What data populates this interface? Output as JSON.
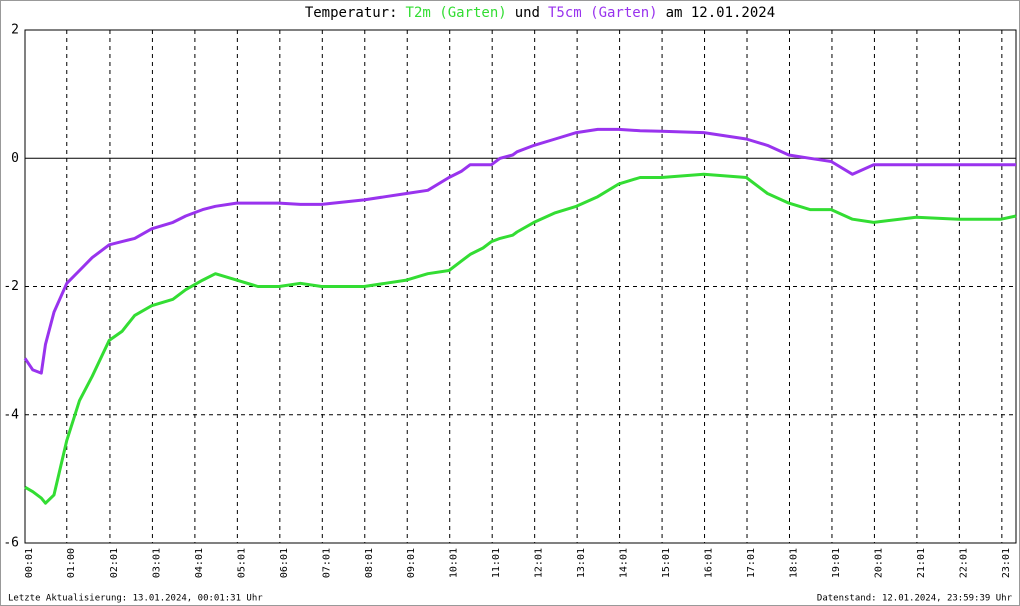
{
  "chart_data": {
    "type": "line",
    "title": [
      {
        "text": "Temperatur:",
        "color": "#000000"
      },
      {
        "text": "T2m (Garten)",
        "color": "#33dd33"
      },
      {
        "text": "und",
        "color": "#000000"
      },
      {
        "text": "T5cm (Garten)",
        "color": "#9933ee"
      },
      {
        "text": "am 12.01.2024",
        "color": "#000000"
      }
    ],
    "footer_left": "Letzte Aktualisierung: 13.01.2024, 00:01:31 Uhr",
    "footer_right": "Datenstand: 12.01.2024, 23:59:39 Uhr",
    "x": [
      0.0167,
      0.2,
      0.4,
      0.5,
      0.7,
      1.0,
      1.3,
      1.6,
      2.0,
      2.3,
      2.6,
      3.0,
      3.5,
      3.8,
      4.2,
      4.5,
      5.0,
      5.5,
      6.0,
      6.5,
      7.0,
      8.0,
      8.5,
      9.0,
      9.5,
      10.0,
      10.3,
      10.5,
      10.8,
      11.0,
      11.2,
      11.5,
      11.6,
      12.0,
      12.5,
      13.0,
      13.5,
      14.0,
      14.5,
      15.0,
      16.0,
      17.0,
      17.5,
      18.0,
      18.5,
      19.0,
      19.5,
      20.0,
      21.0,
      22.0,
      23.0,
      23.35
    ],
    "series": [
      {
        "name": "T2m (Garten)",
        "color": "#33dd33",
        "values": [
          -5.13,
          -5.2,
          -5.3,
          -5.38,
          -5.25,
          -4.4,
          -3.78,
          -3.4,
          -2.84,
          -2.7,
          -2.45,
          -2.3,
          -2.2,
          -2.05,
          -1.9,
          -1.8,
          -1.9,
          -2.0,
          -2.0,
          -1.95,
          -2.0,
          -2.0,
          -1.95,
          -1.9,
          -1.8,
          -1.75,
          -1.6,
          -1.5,
          -1.4,
          -1.3,
          -1.25,
          -1.2,
          -1.15,
          -1.0,
          -0.85,
          -0.75,
          -0.6,
          -0.4,
          -0.3,
          -0.3,
          -0.25,
          -0.3,
          -0.55,
          -0.7,
          -0.8,
          -0.8,
          -0.95,
          -1.0,
          -0.92,
          -0.95,
          -0.95,
          -0.9
        ]
      },
      {
        "name": "T5cm (Garten)",
        "color": "#9933ee",
        "values": [
          -3.12,
          -3.3,
          -3.35,
          -2.9,
          -2.4,
          -1.95,
          -1.75,
          -1.55,
          -1.35,
          -1.3,
          -1.25,
          -1.1,
          -1.0,
          -0.9,
          -0.8,
          -0.75,
          -0.7,
          -0.7,
          -0.7,
          -0.72,
          -0.72,
          -0.65,
          -0.6,
          -0.55,
          -0.5,
          -0.3,
          -0.2,
          -0.1,
          -0.1,
          -0.1,
          0.0,
          0.05,
          0.1,
          0.2,
          0.3,
          0.4,
          0.45,
          0.45,
          0.43,
          0.42,
          0.4,
          0.3,
          0.2,
          0.05,
          0.0,
          -0.05,
          -0.25,
          -0.1,
          -0.1,
          -0.1,
          -0.1,
          -0.1
        ]
      }
    ],
    "xlim": [
      0.0167,
      23.35
    ],
    "xticks": [
      {
        "value": 0.0167,
        "label": "00:01"
      },
      {
        "value": 1,
        "label": "01:00"
      },
      {
        "value": 2.0167,
        "label": "02:01"
      },
      {
        "value": 3.0167,
        "label": "03:01"
      },
      {
        "value": 4.0167,
        "label": "04:01"
      },
      {
        "value": 5.0167,
        "label": "05:01"
      },
      {
        "value": 6.0167,
        "label": "06:01"
      },
      {
        "value": 7.0167,
        "label": "07:01"
      },
      {
        "value": 8.0167,
        "label": "08:01"
      },
      {
        "value": 9.0167,
        "label": "09:01"
      },
      {
        "value": 10.0167,
        "label": "10:01"
      },
      {
        "value": 11.0167,
        "label": "11:01"
      },
      {
        "value": 12.0167,
        "label": "12:01"
      },
      {
        "value": 13.0167,
        "label": "13:01"
      },
      {
        "value": 14.0167,
        "label": "14:01"
      },
      {
        "value": 15.0167,
        "label": "15:01"
      },
      {
        "value": 16.0167,
        "label": "16:01"
      },
      {
        "value": 17.0167,
        "label": "17:01"
      },
      {
        "value": 18.0167,
        "label": "18:01"
      },
      {
        "value": 19.0167,
        "label": "19:01"
      },
      {
        "value": 20.0167,
        "label": "20:01"
      },
      {
        "value": 21.0167,
        "label": "21:01"
      },
      {
        "value": 22.0167,
        "label": "22:01"
      },
      {
        "value": 23.0167,
        "label": "23:01"
      }
    ],
    "ylim": [
      -6,
      2
    ],
    "yticks": [
      -6,
      -4,
      -2,
      0,
      2
    ],
    "grid": true,
    "zero_line": true
  }
}
